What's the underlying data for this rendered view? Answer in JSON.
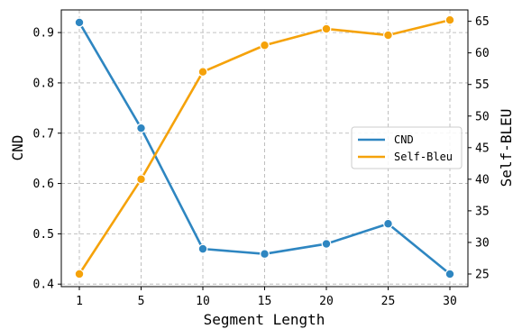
{
  "chart_data": {
    "type": "line",
    "title": "",
    "xlabel": "Segment Length",
    "ylabel_left": "CND",
    "ylabel_right": "Self-BLEU",
    "categories": [
      "1",
      "5",
      "10",
      "15",
      "20",
      "25",
      "30"
    ],
    "ylim_left": [
      0.395,
      0.945
    ],
    "ylim_right": [
      23.0,
      66.8
    ],
    "yticks_left": [
      "0.4",
      "0.5",
      "0.6",
      "0.7",
      "0.8",
      "0.9"
    ],
    "yticks_right": [
      "25",
      "30",
      "35",
      "40",
      "45",
      "50",
      "55",
      "60",
      "65"
    ],
    "grid": true,
    "legend_position": "center-right",
    "series": [
      {
        "name": "CND",
        "axis": "left",
        "color": "#2e86c1",
        "values": [
          0.92,
          0.71,
          0.47,
          0.46,
          0.48,
          0.52,
          0.42
        ]
      },
      {
        "name": "Self-Bleu",
        "axis": "right",
        "color": "#f5a20a",
        "values": [
          25.0,
          40.0,
          57.0,
          61.2,
          63.8,
          62.8,
          65.2
        ]
      }
    ]
  }
}
